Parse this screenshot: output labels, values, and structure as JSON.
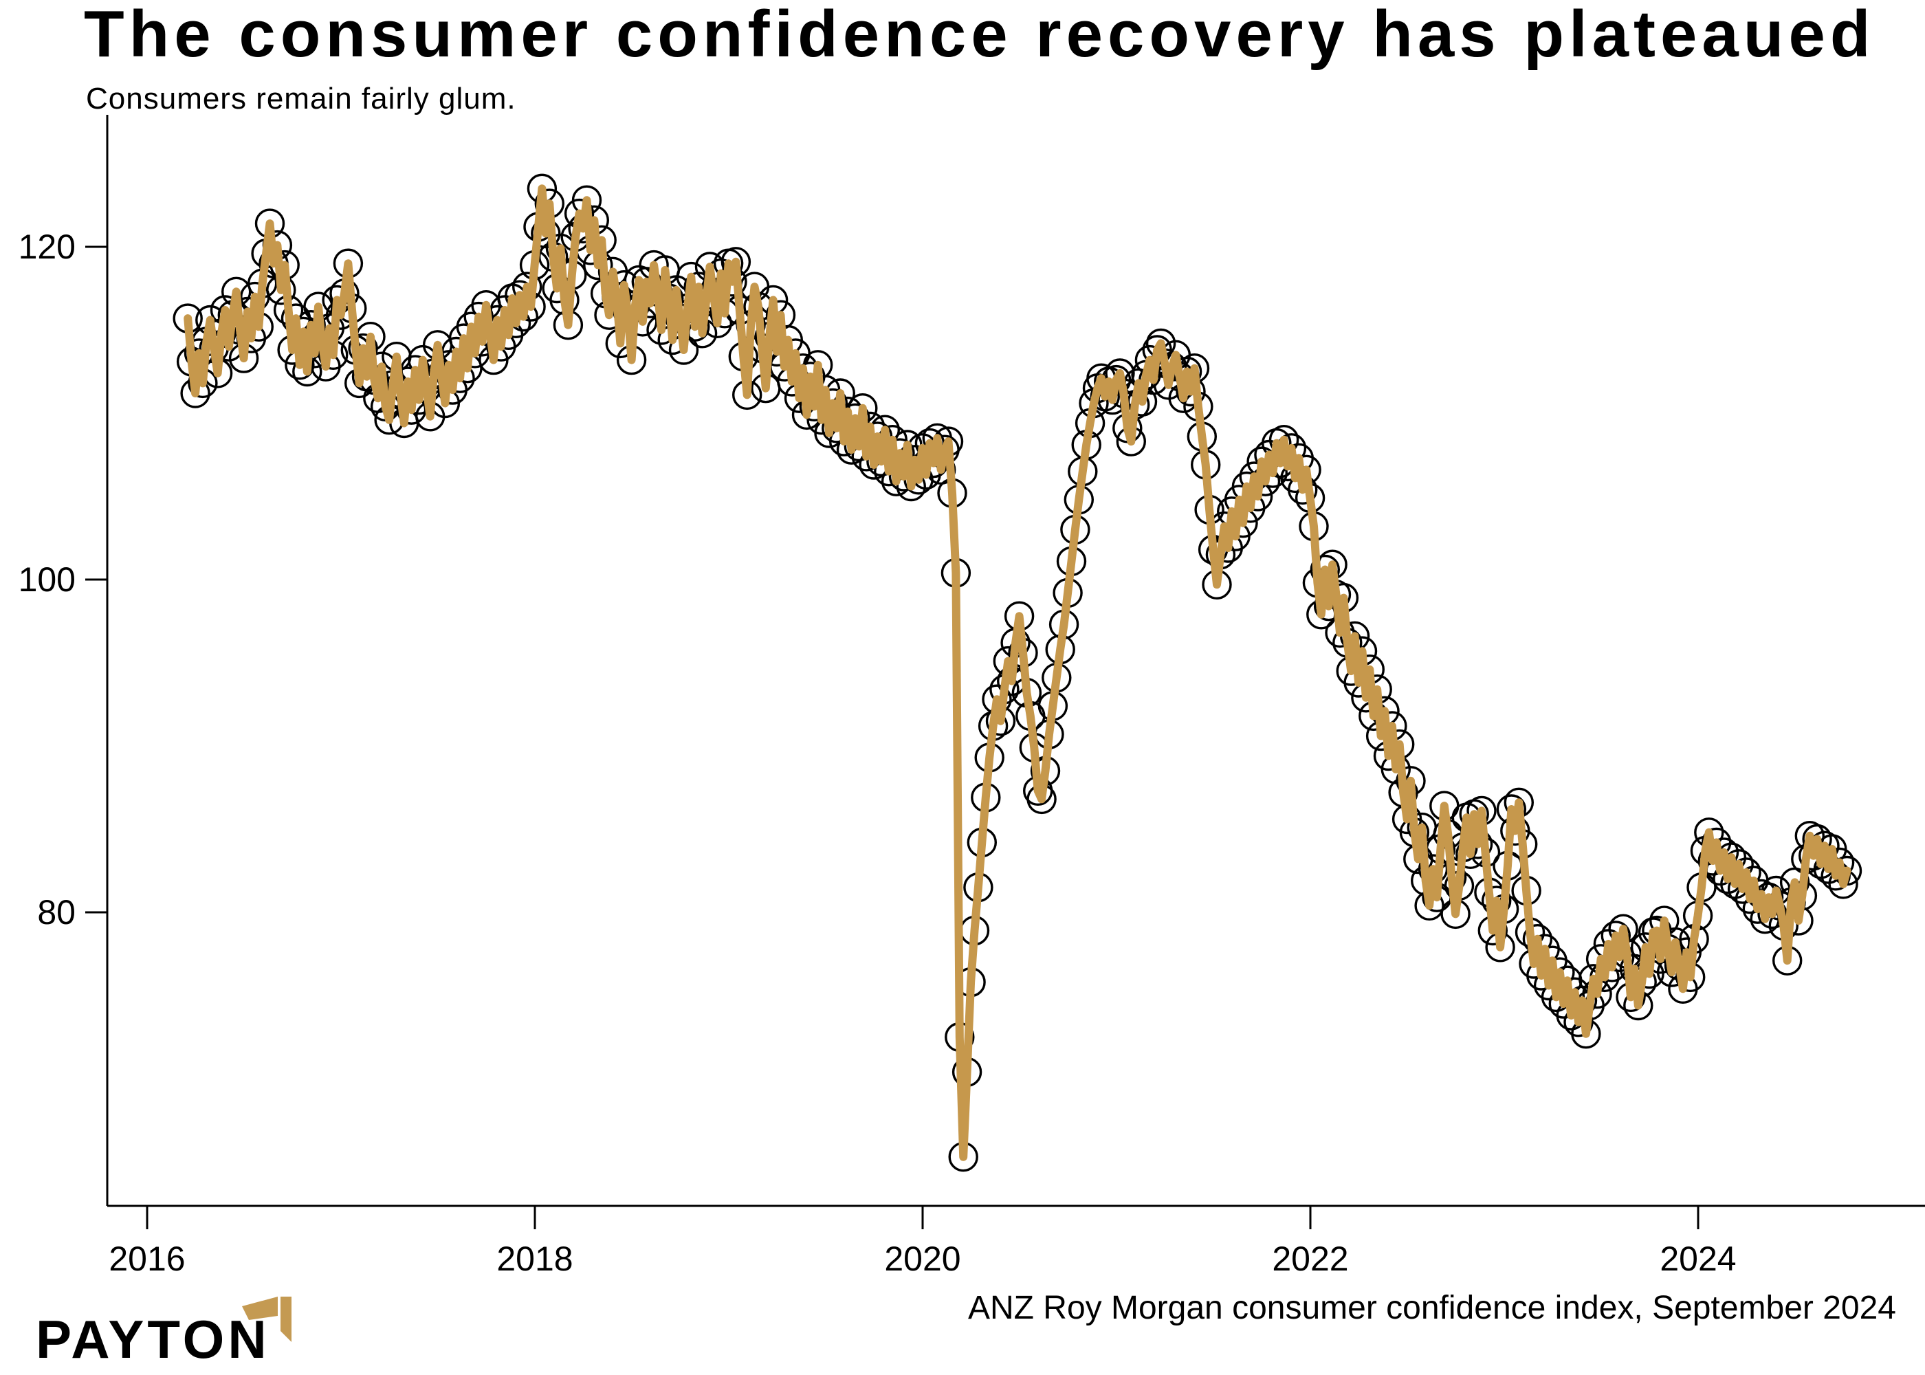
{
  "header": {
    "title": "The consumer confidence recovery has plateaued",
    "subtitle": "Consumers remain fairly glum."
  },
  "footer": {
    "caption": "ANZ Roy Morgan consumer confidence index, September 2024",
    "logo_text": "PAYTON"
  },
  "colors": {
    "line": "#C6984C",
    "marker_stroke": "#000000",
    "axis": "#000000",
    "text": "#000000",
    "logo_gold": "#C49A52",
    "background": "#FFFFFF"
  },
  "chart_data": {
    "type": "line",
    "title": "The consumer confidence recovery has plateaued",
    "subtitle": "Consumers remain fairly glum.",
    "source_caption": "ANZ Roy Morgan consumer confidence index, September 2024",
    "series_name": "ANZ Roy Morgan consumer confidence index",
    "xlabel": "",
    "ylabel": "",
    "grid": false,
    "legend_position": "none",
    "marker": "open-circle",
    "frequency": "weekly",
    "x_ticks": [
      2016,
      2018,
      2020,
      2022,
      2024
    ],
    "y_ticks": [
      80,
      100,
      120
    ],
    "xlim": [
      2015.79,
      2025.17
    ],
    "ylim": [
      62.4,
      127.9
    ],
    "start_year": 2016.21,
    "points_per_year": 52,
    "values": [
      115.7,
      113.1,
      111.2,
      113.6,
      111.8,
      114.3,
      115.6,
      113.9,
      112.4,
      114.8,
      116.2,
      114.0,
      115.9,
      117.3,
      115.0,
      113.3,
      116.1,
      114.5,
      117.0,
      115.2,
      117.8,
      119.6,
      121.4,
      119.0,
      120.1,
      117.4,
      118.9,
      116.2,
      113.8,
      115.7,
      112.9,
      114.9,
      112.5,
      115.3,
      113.6,
      116.4,
      114.2,
      112.8,
      115.1,
      113.5,
      116.8,
      115.9,
      117.2,
      119.0,
      116.3,
      113.8,
      111.8,
      113.9,
      112.2,
      114.6,
      112.0,
      110.9,
      112.8,
      110.4,
      109.6,
      111.7,
      113.4,
      111.2,
      109.4,
      111.9,
      110.2,
      112.6,
      110.8,
      113.2,
      111.5,
      109.8,
      112.4,
      114.1,
      112.3,
      110.6,
      112.9,
      111.4,
      113.7,
      112.1,
      114.5,
      112.7,
      115.2,
      113.6,
      115.8,
      114.3,
      116.5,
      114.9,
      113.2,
      115.6,
      114.0,
      116.2,
      114.7,
      116.9,
      115.4,
      117.1,
      115.8,
      117.6,
      116.4,
      118.9,
      121.2,
      123.5,
      120.8,
      122.6,
      119.4,
      117.5,
      119.9,
      116.8,
      115.3,
      118.3,
      120.6,
      122.0,
      121.1,
      122.8,
      119.8,
      121.6,
      118.9,
      120.4,
      117.2,
      115.9,
      118.5,
      117.0,
      114.2,
      117.7,
      116.1,
      113.2,
      116.5,
      118.0,
      115.5,
      117.9,
      116.6,
      118.9,
      117.3,
      115.0,
      118.6,
      116.9,
      114.4,
      117.4,
      115.7,
      113.8,
      116.3,
      118.2,
      115.2,
      117.6,
      114.8,
      116.7,
      118.8,
      117.1,
      115.4,
      118.4,
      116.0,
      119.0,
      117.9,
      119.1,
      116.2,
      113.4,
      111.1,
      115.3,
      117.6,
      116.4,
      113.9,
      111.5,
      114.6,
      116.8,
      113.7,
      115.9,
      112.8,
      114.4,
      111.9,
      113.6,
      110.9,
      112.7,
      109.9,
      112.2,
      110.4,
      112.9,
      109.6,
      111.4,
      108.8,
      110.6,
      109.1,
      111.2,
      108.3,
      110.1,
      107.8,
      109.7,
      108.0,
      110.3,
      107.4,
      109.2,
      106.9,
      108.6,
      107.1,
      109.0,
      106.5,
      108.4,
      105.9,
      107.6,
      106.2,
      108.1,
      105.6,
      107.2,
      106.0,
      107.9,
      106.3,
      108.2,
      107.0,
      108.5,
      106.6,
      107.8,
      108.3,
      105.2,
      100.4,
      72.5,
      65.3,
      70.4,
      75.8,
      78.9,
      81.5,
      84.2,
      86.9,
      89.3,
      91.2,
      92.8,
      91.5,
      93.4,
      95.1,
      93.9,
      96.2,
      97.8,
      95.6,
      93.2,
      91.8,
      89.9,
      87.3,
      86.8,
      88.5,
      90.7,
      92.4,
      94.1,
      95.8,
      97.3,
      99.2,
      101.1,
      103.0,
      104.8,
      106.5,
      108.1,
      109.4,
      110.6,
      111.5,
      112.1,
      111.0,
      111.9,
      110.8,
      112.0,
      112.4,
      111.2,
      109.1,
      108.3,
      110.5,
      111.8,
      110.7,
      112.3,
      113.2,
      112.0,
      113.8,
      114.2,
      113.0,
      111.7,
      112.8,
      113.5,
      112.2,
      110.9,
      112.5,
      111.3,
      112.7,
      110.4,
      108.6,
      106.9,
      104.2,
      101.8,
      99.7,
      101.5,
      103.2,
      101.9,
      104.1,
      102.6,
      104.8,
      103.4,
      105.6,
      104.3,
      106.2,
      105.0,
      107.1,
      105.9,
      107.5,
      106.4,
      108.2,
      107.0,
      108.4,
      106.8,
      107.9,
      106.1,
      107.3,
      105.4,
      106.6,
      104.9,
      103.2,
      99.8,
      97.9,
      100.6,
      98.4,
      100.9,
      99.1,
      96.8,
      98.9,
      96.2,
      94.5,
      96.6,
      93.8,
      95.7,
      92.9,
      94.6,
      91.8,
      93.4,
      90.6,
      92.1,
      89.4,
      91.2,
      88.6,
      90.1,
      87.2,
      85.6,
      87.9,
      84.8,
      83.2,
      85.1,
      81.9,
      80.4,
      82.6,
      80.9,
      83.8,
      86.4,
      84.7,
      82.1,
      79.9,
      81.6,
      83.9,
      85.7,
      83.5,
      85.9,
      84.1,
      86.1,
      83.6,
      81.2,
      78.9,
      80.7,
      77.9,
      80.2,
      82.8,
      86.2,
      84.9,
      86.6,
      84.1,
      81.3,
      78.8,
      76.9,
      78.4,
      76.2,
      77.8,
      75.6,
      77.1,
      74.9,
      76.4,
      74.5,
      75.9,
      73.8,
      75.2,
      73.4,
      74.7,
      72.7,
      74.4,
      76.0,
      75.1,
      77.2,
      76.1,
      78.1,
      76.7,
      78.6,
      77.3,
      79.0,
      77.5,
      74.9,
      76.6,
      74.4,
      75.8,
      77.9,
      76.3,
      78.8,
      78.9,
      77.2,
      79.5,
      77.8,
      76.4,
      78.2,
      76.8,
      75.4,
      77.6,
      76.1,
      78.4,
      79.8,
      81.5,
      83.7,
      84.8,
      83.1,
      84.2,
      82.5,
      83.6,
      82.0,
      83.3,
      81.7,
      82.9,
      81.4,
      82.4,
      80.8,
      81.9,
      80.2,
      81.1,
      79.6,
      80.9,
      79.9,
      81.3,
      80.4,
      79.2,
      77.1,
      80.6,
      81.8,
      79.5,
      81.0,
      83.2,
      84.6,
      83.4,
      84.4,
      82.9,
      84.0,
      82.6,
      83.8,
      82.2,
      83.0,
      81.7,
      82.5
    ]
  }
}
